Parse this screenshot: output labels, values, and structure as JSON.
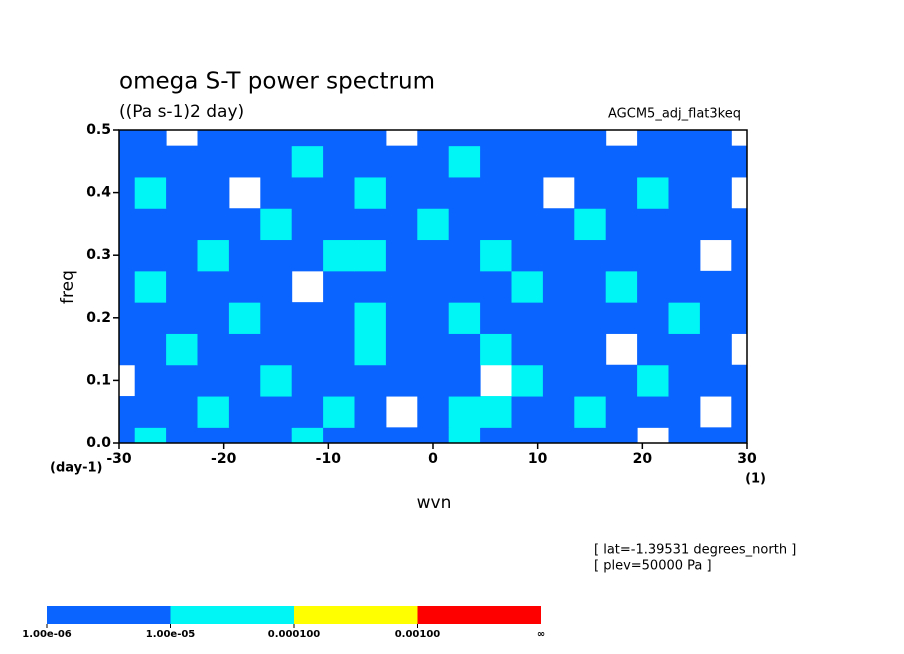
{
  "chart_data": {
    "type": "contour",
    "title": "omega S-T power spectrum",
    "subtitle": "((Pa s-1)2 day)",
    "run_label": "AGCM5_adj_flat3keq",
    "x_label": "wvn",
    "y_label": "freq",
    "x_unit": "(1)",
    "y_unit": "(day-1)",
    "annotations": [
      "[ lat=-1.39531 degrees_north ]",
      "[ plev=50000 Pa ]"
    ],
    "xlim": [
      -30,
      30
    ],
    "xticks": [
      -30,
      -20,
      -10,
      0,
      10,
      20,
      30
    ],
    "ylim": [
      0,
      0.5
    ],
    "yticks": [
      {
        "value": 0,
        "label": "0.0"
      },
      0.1,
      0.2,
      0.3,
      0.4,
      0.5
    ],
    "x": [
      -30,
      -27,
      -24,
      -21,
      -18,
      -15,
      -12,
      -9,
      -6,
      -3,
      0,
      3,
      6,
      9,
      12,
      15,
      18,
      21,
      24,
      27,
      30
    ],
    "y": [
      0,
      0.05,
      0.1,
      0.15,
      0.2,
      0.25,
      0.3,
      0.35,
      0.4,
      0.45,
      0.5
    ],
    "z": [
      [
        5e-06,
        2e-05,
        5e-06,
        5e-06,
        5e-06,
        5e-06,
        2e-05,
        5e-06,
        5e-06,
        5e-06,
        5e-06,
        2e-05,
        5e-06,
        5e-06,
        5e-06,
        5e-06,
        5e-06,
        5e-07,
        5e-06,
        5e-06,
        5e-06
      ],
      [
        5e-06,
        5e-06,
        5e-06,
        2e-05,
        5e-06,
        5e-06,
        5e-06,
        2e-05,
        5e-06,
        5e-07,
        5e-06,
        2e-05,
        2e-05,
        5e-06,
        5e-06,
        2e-05,
        5e-06,
        5e-06,
        5e-06,
        5e-07,
        5e-06
      ],
      [
        5e-07,
        5e-06,
        5e-06,
        5e-06,
        5e-06,
        2e-05,
        5e-06,
        5e-06,
        5e-06,
        5e-06,
        5e-06,
        5e-06,
        5e-07,
        2e-05,
        5e-06,
        5e-06,
        5e-06,
        2e-05,
        5e-06,
        5e-06,
        5e-06
      ],
      [
        5e-06,
        5e-06,
        2e-05,
        5e-06,
        5e-06,
        5e-06,
        5e-06,
        5e-06,
        2e-05,
        5e-06,
        5e-06,
        5e-06,
        2e-05,
        5e-06,
        5e-06,
        5e-06,
        5e-07,
        5e-06,
        5e-06,
        5e-06,
        5e-07
      ],
      [
        5e-06,
        5e-06,
        5e-06,
        5e-06,
        2e-05,
        5e-06,
        5e-06,
        5e-06,
        2e-05,
        5e-06,
        5e-06,
        2e-05,
        5e-06,
        5e-06,
        5e-06,
        5e-06,
        5e-06,
        5e-06,
        2e-05,
        5e-06,
        5e-06
      ],
      [
        5e-06,
        2e-05,
        5e-06,
        5e-06,
        5e-06,
        5e-06,
        5e-07,
        5e-06,
        5e-06,
        5e-06,
        5e-06,
        5e-06,
        5e-06,
        2e-05,
        5e-06,
        5e-06,
        2e-05,
        5e-06,
        5e-06,
        5e-06,
        5e-06
      ],
      [
        5e-06,
        5e-06,
        5e-06,
        2e-05,
        5e-06,
        5e-06,
        5e-06,
        2e-05,
        2e-05,
        5e-06,
        5e-06,
        5e-06,
        2e-05,
        5e-06,
        5e-06,
        5e-06,
        5e-06,
        5e-06,
        5e-06,
        5e-07,
        5e-06
      ],
      [
        5e-06,
        5e-06,
        5e-06,
        5e-06,
        5e-06,
        2e-05,
        5e-06,
        5e-06,
        5e-06,
        5e-06,
        2e-05,
        5e-06,
        5e-06,
        5e-06,
        5e-06,
        2e-05,
        5e-06,
        5e-06,
        5e-06,
        5e-06,
        5e-06
      ],
      [
        5e-06,
        2e-05,
        5e-06,
        5e-06,
        5e-07,
        5e-06,
        5e-06,
        5e-06,
        2e-05,
        5e-06,
        5e-06,
        5e-06,
        5e-06,
        5e-06,
        5e-07,
        5e-06,
        5e-06,
        2e-05,
        5e-06,
        5e-06,
        5e-07
      ],
      [
        5e-06,
        5e-06,
        5e-06,
        5e-06,
        5e-06,
        5e-06,
        2e-05,
        5e-06,
        5e-06,
        5e-06,
        5e-06,
        2e-05,
        5e-06,
        5e-06,
        5e-06,
        5e-06,
        5e-06,
        5e-06,
        5e-06,
        5e-06,
        5e-06
      ],
      [
        5e-06,
        5e-06,
        5e-07,
        5e-06,
        5e-06,
        5e-06,
        5e-06,
        5e-06,
        5e-06,
        5e-07,
        5e-06,
        5e-06,
        5e-06,
        5e-06,
        5e-06,
        5e-06,
        5e-07,
        5e-06,
        5e-06,
        5e-06,
        5e-07
      ]
    ],
    "levels": [
      {
        "value": 1e-06,
        "label": "1.00e-06"
      },
      {
        "value": 1e-05,
        "label": "1.00e-05"
      },
      {
        "value": 0.0001,
        "label": "0.000100"
      },
      {
        "value": 0.001,
        "label": "0.00100"
      }
    ],
    "levels_end_label": "∞",
    "colors": [
      "#0a64ff",
      "#00f5f5",
      "#ffff00",
      "#ff0000"
    ]
  }
}
